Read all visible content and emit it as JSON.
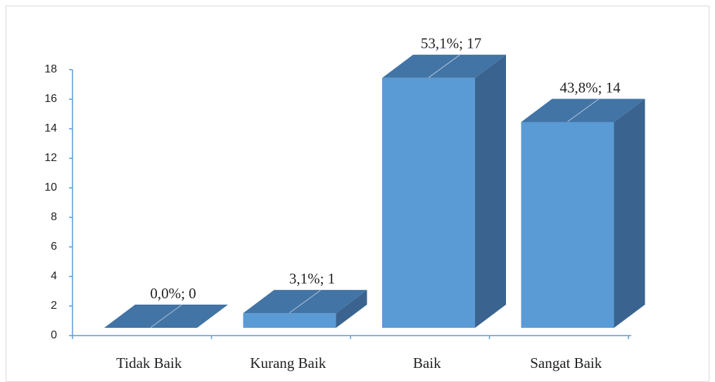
{
  "chart_data": {
    "type": "bar3d",
    "categories": [
      "Tidak Baik",
      "Kurang Baik",
      "Baik",
      "Sangat Baik"
    ],
    "values": [
      0,
      1,
      17,
      14
    ],
    "value_labels": [
      "0,0%; 0",
      "3,1%; 1",
      "53,1%; 17",
      "43,8%; 14"
    ],
    "color": "#5b9bd5",
    "ylim": [
      0,
      18
    ],
    "yticks": [
      0,
      2,
      4,
      6,
      8,
      10,
      12,
      14,
      16,
      18
    ]
  }
}
